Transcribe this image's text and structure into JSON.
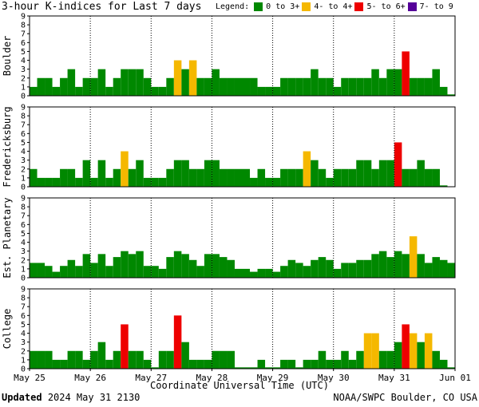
{
  "title": "3-hour K-indices for Last 7 days",
  "legend": {
    "label": "Legend:",
    "items": [
      {
        "label": "0 to 3+",
        "color": "#008800"
      },
      {
        "label": "4- to 4+",
        "color": "#f5b800"
      },
      {
        "label": "5- to 6+",
        "color": "#ee0000"
      },
      {
        "label": "7- to 9",
        "color": "#550099"
      }
    ]
  },
  "footer": {
    "updated_label": "Updated",
    "updated_value": "2024 May 31 2130",
    "source": "NOAA/SWPC Boulder, CO USA"
  },
  "chart_data": {
    "type": "bar",
    "xlabel": "Coordinate Universal Time (UTC)",
    "x_ticks": [
      "May 25",
      "May 26",
      "May 27",
      "May 28",
      "May 29",
      "May 30",
      "May 31",
      "Jun 01"
    ],
    "ylim": [
      0,
      9
    ],
    "y_ticks": [
      "0",
      "1",
      "2",
      "3",
      "4",
      "5",
      "6",
      "7",
      "8",
      "9"
    ],
    "interval_hours": 3,
    "panels": [
      {
        "ylabel": "Boulder",
        "values": [
          1,
          2,
          2,
          1,
          2,
          3,
          1,
          2,
          2,
          3,
          1,
          2,
          3,
          3,
          3,
          2,
          1,
          1,
          2,
          4,
          3,
          4,
          2,
          2,
          3,
          2,
          2,
          2,
          2,
          2,
          1,
          1,
          1,
          2,
          2,
          2,
          2,
          3,
          2,
          2,
          1,
          2,
          2,
          2,
          2,
          3,
          2,
          3,
          3,
          5,
          2,
          2,
          2,
          3,
          1,
          0.15
        ]
      },
      {
        "ylabel": "Fredericksburg",
        "values": [
          2,
          1,
          1,
          1,
          2,
          2,
          1,
          3,
          1,
          3,
          1,
          2,
          4,
          2,
          3,
          1,
          1,
          1,
          2,
          3,
          3,
          2,
          2,
          3,
          3,
          2,
          2,
          2,
          2,
          1,
          2,
          1,
          1,
          2,
          2,
          2,
          4,
          3,
          2,
          1,
          2,
          2,
          2,
          3,
          3,
          2,
          3,
          3,
          5,
          2,
          2,
          3,
          2,
          2,
          0.15
        ]
      },
      {
        "ylabel": "Est. Planetary",
        "values": [
          1.67,
          1.67,
          1.33,
          0.67,
          1.33,
          2,
          1.33,
          2.67,
          1.67,
          2.67,
          1.33,
          2.33,
          3,
          2.67,
          3,
          1.33,
          1.33,
          1,
          2.33,
          3,
          2.67,
          2,
          1.33,
          2.67,
          2.67,
          2.33,
          2,
          1,
          1,
          0.67,
          1,
          1,
          0.67,
          1.33,
          2,
          1.67,
          1.33,
          2,
          2.33,
          2,
          1,
          1.67,
          1.67,
          2,
          2,
          2.67,
          3,
          2.33,
          3,
          2.67,
          4.67,
          2.67,
          1.67,
          2.33,
          2,
          1.67
        ]
      },
      {
        "ylabel": "College",
        "values": [
          2,
          2,
          2,
          1,
          1,
          2,
          2,
          1,
          2,
          3,
          1,
          2,
          5,
          2,
          2,
          1,
          0.15,
          2,
          2,
          6,
          3,
          1,
          1,
          1,
          2,
          2,
          2,
          0.15,
          0.15,
          0.15,
          1,
          0.15,
          0.15,
          1,
          1,
          0.15,
          1,
          1,
          2,
          1,
          1,
          2,
          1,
          2,
          4,
          4,
          2,
          2,
          3,
          5,
          4,
          3,
          4,
          2,
          1,
          0.15
        ]
      }
    ]
  }
}
